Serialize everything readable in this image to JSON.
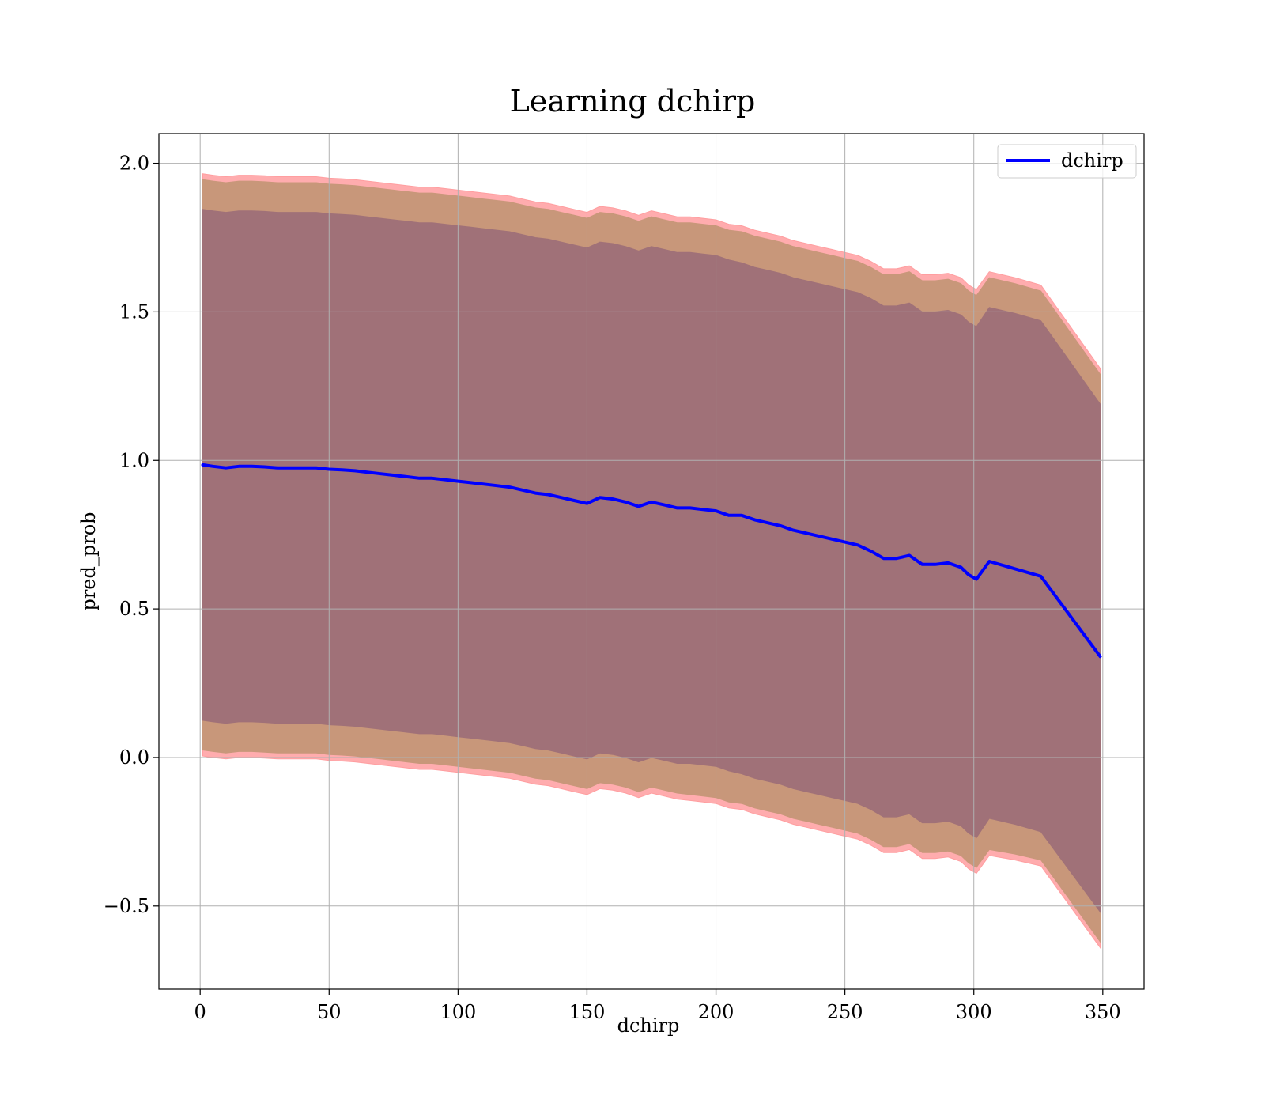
{
  "chart_data": {
    "type": "line",
    "title": "Learning dchirp",
    "xlabel": "dchirp",
    "ylabel": "pred_prob",
    "xlim": [
      -16,
      366
    ],
    "ylim": [
      -0.78,
      2.1
    ],
    "xticks": [
      0,
      50,
      100,
      150,
      200,
      250,
      300,
      350
    ],
    "yticks": [
      -0.5,
      0.0,
      0.5,
      1.0,
      1.5,
      2.0
    ],
    "xtick_labels": [
      "0",
      "50",
      "100",
      "150",
      "200",
      "250",
      "300",
      "350"
    ],
    "ytick_labels": [
      "−0.5",
      "0.0",
      "0.5",
      "1.0",
      "1.5",
      "2.0"
    ],
    "grid": true,
    "legend_position": "top-right",
    "colors": {
      "line": "#0000ff",
      "band_outer": "#ff9ea0",
      "band_middle": "#c8977a",
      "band_inner": "#a07178"
    },
    "series": [
      {
        "name": "dchirp",
        "x": [
          1,
          5,
          10,
          15,
          20,
          25,
          30,
          35,
          40,
          45,
          50,
          55,
          60,
          65,
          70,
          75,
          80,
          85,
          90,
          95,
          100,
          105,
          110,
          115,
          120,
          125,
          130,
          135,
          140,
          145,
          150,
          155,
          160,
          165,
          170,
          175,
          180,
          185,
          190,
          195,
          200,
          205,
          210,
          215,
          220,
          225,
          230,
          235,
          240,
          245,
          250,
          255,
          260,
          265,
          270,
          275,
          280,
          285,
          290,
          295,
          298,
          301,
          306,
          316,
          326,
          349
        ],
        "y": [
          0.985,
          0.98,
          0.975,
          0.98,
          0.98,
          0.978,
          0.975,
          0.975,
          0.975,
          0.975,
          0.97,
          0.968,
          0.965,
          0.96,
          0.955,
          0.95,
          0.945,
          0.94,
          0.94,
          0.935,
          0.93,
          0.925,
          0.92,
          0.915,
          0.91,
          0.9,
          0.89,
          0.885,
          0.875,
          0.865,
          0.855,
          0.875,
          0.87,
          0.86,
          0.845,
          0.86,
          0.85,
          0.84,
          0.84,
          0.835,
          0.83,
          0.815,
          0.815,
          0.8,
          0.79,
          0.78,
          0.765,
          0.755,
          0.745,
          0.735,
          0.725,
          0.715,
          0.695,
          0.67,
          0.67,
          0.68,
          0.65,
          0.65,
          0.655,
          0.64,
          0.615,
          0.6,
          0.66,
          0.635,
          0.61,
          0.34
        ],
        "band_outer_upper": [
          1.965,
          1.96,
          1.955,
          1.96,
          1.96,
          1.958,
          1.955,
          1.955,
          1.955,
          1.955,
          1.95,
          1.948,
          1.945,
          1.94,
          1.935,
          1.93,
          1.925,
          1.92,
          1.92,
          1.915,
          1.91,
          1.905,
          1.9,
          1.895,
          1.89,
          1.88,
          1.87,
          1.865,
          1.855,
          1.845,
          1.835,
          1.855,
          1.85,
          1.84,
          1.825,
          1.84,
          1.83,
          1.82,
          1.82,
          1.815,
          1.81,
          1.795,
          1.79,
          1.775,
          1.765,
          1.755,
          1.74,
          1.73,
          1.72,
          1.71,
          1.7,
          1.69,
          1.67,
          1.645,
          1.645,
          1.655,
          1.625,
          1.625,
          1.63,
          1.615,
          1.59,
          1.575,
          1.635,
          1.615,
          1.59,
          1.31
        ],
        "band_outer_lower": [
          0.005,
          0.0,
          -0.005,
          0.0,
          0.0,
          -0.002,
          -0.005,
          -0.005,
          -0.005,
          -0.005,
          -0.01,
          -0.012,
          -0.015,
          -0.02,
          -0.025,
          -0.03,
          -0.035,
          -0.04,
          -0.04,
          -0.045,
          -0.05,
          -0.055,
          -0.06,
          -0.065,
          -0.07,
          -0.08,
          -0.09,
          -0.095,
          -0.105,
          -0.115,
          -0.125,
          -0.105,
          -0.11,
          -0.12,
          -0.135,
          -0.12,
          -0.13,
          -0.14,
          -0.145,
          -0.15,
          -0.155,
          -0.17,
          -0.175,
          -0.19,
          -0.2,
          -0.21,
          -0.225,
          -0.235,
          -0.245,
          -0.255,
          -0.265,
          -0.275,
          -0.295,
          -0.32,
          -0.32,
          -0.31,
          -0.34,
          -0.34,
          -0.335,
          -0.35,
          -0.375,
          -0.39,
          -0.33,
          -0.345,
          -0.365,
          -0.64
        ],
        "band_middle_upper": [
          1.945,
          1.94,
          1.935,
          1.94,
          1.94,
          1.938,
          1.935,
          1.935,
          1.935,
          1.935,
          1.93,
          1.928,
          1.925,
          1.92,
          1.915,
          1.91,
          1.905,
          1.9,
          1.9,
          1.895,
          1.89,
          1.885,
          1.88,
          1.875,
          1.87,
          1.86,
          1.85,
          1.845,
          1.835,
          1.825,
          1.815,
          1.835,
          1.83,
          1.82,
          1.805,
          1.82,
          1.81,
          1.8,
          1.8,
          1.795,
          1.79,
          1.775,
          1.77,
          1.755,
          1.745,
          1.735,
          1.72,
          1.71,
          1.7,
          1.69,
          1.68,
          1.67,
          1.65,
          1.625,
          1.625,
          1.635,
          1.605,
          1.605,
          1.61,
          1.595,
          1.57,
          1.555,
          1.615,
          1.595,
          1.57,
          1.29
        ],
        "band_middle_lower": [
          0.025,
          0.02,
          0.015,
          0.02,
          0.02,
          0.018,
          0.015,
          0.015,
          0.015,
          0.015,
          0.01,
          0.008,
          0.005,
          0.0,
          -0.005,
          -0.01,
          -0.015,
          -0.02,
          -0.02,
          -0.025,
          -0.03,
          -0.035,
          -0.04,
          -0.045,
          -0.05,
          -0.06,
          -0.07,
          -0.075,
          -0.085,
          -0.095,
          -0.105,
          -0.085,
          -0.09,
          -0.1,
          -0.115,
          -0.1,
          -0.11,
          -0.12,
          -0.125,
          -0.13,
          -0.135,
          -0.15,
          -0.155,
          -0.17,
          -0.18,
          -0.19,
          -0.205,
          -0.215,
          -0.225,
          -0.235,
          -0.245,
          -0.255,
          -0.275,
          -0.3,
          -0.3,
          -0.29,
          -0.32,
          -0.32,
          -0.315,
          -0.33,
          -0.355,
          -0.37,
          -0.31,
          -0.325,
          -0.345,
          -0.62
        ],
        "band_inner_upper": [
          1.845,
          1.84,
          1.835,
          1.84,
          1.84,
          1.838,
          1.835,
          1.835,
          1.835,
          1.835,
          1.83,
          1.828,
          1.825,
          1.82,
          1.815,
          1.81,
          1.805,
          1.8,
          1.8,
          1.795,
          1.79,
          1.785,
          1.78,
          1.775,
          1.77,
          1.76,
          1.75,
          1.745,
          1.735,
          1.725,
          1.715,
          1.735,
          1.73,
          1.72,
          1.705,
          1.72,
          1.71,
          1.7,
          1.7,
          1.695,
          1.69,
          1.675,
          1.665,
          1.65,
          1.64,
          1.63,
          1.615,
          1.605,
          1.595,
          1.585,
          1.575,
          1.565,
          1.545,
          1.52,
          1.52,
          1.53,
          1.5,
          1.5,
          1.505,
          1.49,
          1.465,
          1.45,
          1.515,
          1.495,
          1.47,
          1.19
        ],
        "band_inner_lower": [
          0.125,
          0.12,
          0.115,
          0.12,
          0.12,
          0.118,
          0.115,
          0.115,
          0.115,
          0.115,
          0.11,
          0.108,
          0.105,
          0.1,
          0.095,
          0.09,
          0.085,
          0.08,
          0.08,
          0.075,
          0.07,
          0.065,
          0.06,
          0.055,
          0.05,
          0.04,
          0.03,
          0.025,
          0.015,
          0.005,
          -0.005,
          0.015,
          0.01,
          0.0,
          -0.015,
          0.0,
          -0.01,
          -0.02,
          -0.02,
          -0.025,
          -0.03,
          -0.045,
          -0.055,
          -0.07,
          -0.08,
          -0.09,
          -0.105,
          -0.115,
          -0.125,
          -0.135,
          -0.145,
          -0.155,
          -0.175,
          -0.2,
          -0.2,
          -0.19,
          -0.22,
          -0.22,
          -0.215,
          -0.23,
          -0.255,
          -0.27,
          -0.205,
          -0.225,
          -0.25,
          -0.52
        ]
      }
    ]
  }
}
